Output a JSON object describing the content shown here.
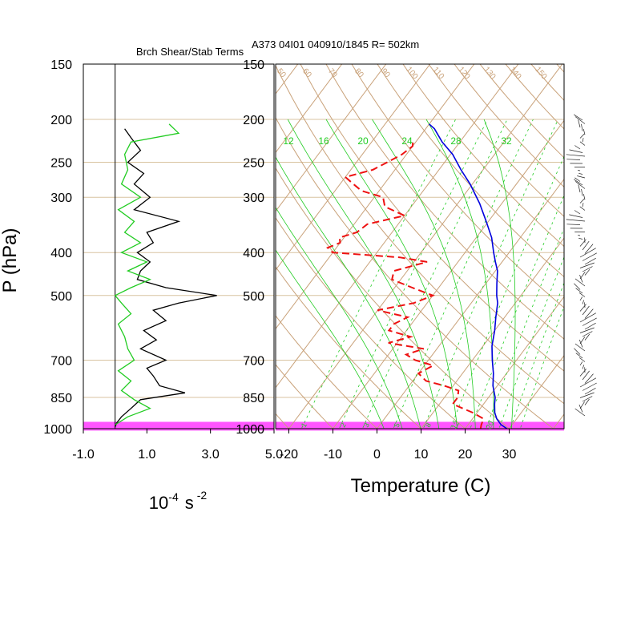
{
  "colors": {
    "frame": "#000000",
    "isobar": "#d8c3a0",
    "diag": "#c9a27a",
    "mixing": "#22cc22",
    "highlight": "#ff55ff",
    "dewpoint": "#ee1111",
    "temperature": "#0000dd",
    "shear": "#000000",
    "stability": "#22cc22"
  },
  "chart_data": [
    {
      "type": "line",
      "panel": "shear-stability",
      "title": "Brch Shear/Stab Terms",
      "xlabel_base": "10",
      "xlabel_exp": "-4",
      "xlabel_unit": "s",
      "xlabel_unit_exp": "-2",
      "ylabel": "P (hPa)",
      "x_ticks": [
        "-1.0",
        "1.0",
        "3.0",
        "5.0"
      ],
      "xlim": [
        -1.0,
        5.0
      ],
      "y_ticks": [
        "150",
        "200",
        "250",
        "300",
        "400",
        "500",
        "700",
        "850",
        "1000"
      ],
      "ylim": [
        1000,
        150
      ],
      "highlight_band_hpa": [
        965,
        1010
      ],
      "series": [
        {
          "key": "shear",
          "pressure": [
            210,
            220,
            235,
            250,
            265,
            280,
            300,
            320,
            340,
            360,
            380,
            400,
            420,
            440,
            460,
            480,
            500,
            520,
            540,
            570,
            600,
            630,
            660,
            700,
            730,
            760,
            800,
            830,
            860,
            900,
            940,
            970,
            990
          ],
          "values": [
            0.3,
            0.5,
            0.8,
            0.4,
            0.9,
            0.6,
            1.1,
            0.6,
            2.0,
            1.0,
            1.2,
            0.7,
            1.1,
            0.8,
            0.7,
            1.6,
            3.2,
            2.0,
            1.2,
            1.6,
            0.9,
            1.3,
            0.8,
            1.6,
            1.0,
            1.2,
            1.4,
            2.2,
            0.8,
            0.5,
            0.2,
            0.05,
            0.0
          ]
        },
        {
          "key": "stability",
          "pressure": [
            205,
            215,
            225,
            240,
            260,
            280,
            300,
            320,
            340,
            360,
            380,
            400,
            420,
            440,
            460,
            480,
            500,
            520,
            550,
            580,
            620,
            660,
            700,
            740,
            780,
            820,
            860,
            900,
            940,
            980
          ],
          "values": [
            1.7,
            2.0,
            0.5,
            0.3,
            0.4,
            0.2,
            0.8,
            0.1,
            0.6,
            0.3,
            0.8,
            0.2,
            1.0,
            0.4,
            1.1,
            0.5,
            0.0,
            0.2,
            0.5,
            0.1,
            0.3,
            0.4,
            0.6,
            0.1,
            0.5,
            0.2,
            0.6,
            1.1,
            0.4,
            0.0
          ]
        }
      ]
    },
    {
      "type": "line",
      "panel": "skew-t",
      "title": "A373 04I01 040910/1845 R= 502km",
      "xlabel": "Temperature (C)",
      "x_ticks": [
        "-20",
        "-10",
        "0",
        "10",
        "20",
        "30"
      ],
      "xlim": [
        -23,
        42
      ],
      "y_ticks": [
        "150",
        "200",
        "250",
        "300",
        "400",
        "500",
        "700",
        "850",
        "1000"
      ],
      "ylim": [
        1000,
        150
      ],
      "mixing_ratio_labels_top": [
        "12",
        "16",
        "20",
        "24",
        "28",
        "32"
      ],
      "mixing_ratio_labels_bottom": [
        "1",
        "2",
        "3",
        "5",
        "8",
        "12",
        "20"
      ],
      "theta_labels": [
        "50",
        "60",
        "70",
        "80",
        "90",
        "100",
        "110",
        "120",
        "130",
        "140",
        "150"
      ],
      "highlight_band_hpa": [
        965,
        1010
      ],
      "series": [
        {
          "key": "temperature",
          "pressure": [
            1000,
            980,
            950,
            920,
            880,
            850,
            800,
            750,
            700,
            650,
            600,
            560,
            520,
            500,
            470,
            440,
            420,
            400,
            370,
            340,
            310,
            280,
            260,
            240,
            225,
            210,
            205
          ],
          "values": [
            29.5,
            27.5,
            25.5,
            24.0,
            22.5,
            21.5,
            19.0,
            17.0,
            14.5,
            12.0,
            10.0,
            8.0,
            6.0,
            4.5,
            2.5,
            0.5,
            -1.5,
            -3.5,
            -6.5,
            -10.5,
            -15.0,
            -20.5,
            -25.0,
            -29.5,
            -34.0,
            -38.0,
            -40.0
          ]
        },
        {
          "key": "dewpoint",
          "pressure": [
            1000,
            980,
            950,
            920,
            880,
            850,
            820,
            800,
            780,
            750,
            720,
            700,
            680,
            660,
            640,
            620,
            600,
            580,
            560,
            540,
            520,
            500,
            480,
            460,
            440,
            420,
            410,
            400,
            390,
            380,
            370,
            360,
            345,
            330,
            315,
            300,
            290,
            280,
            270,
            260,
            250,
            240,
            230,
            222
          ],
          "values": [
            23.5,
            23.0,
            22.5,
            19.0,
            13.0,
            13.0,
            12.0,
            8.0,
            3.0,
            0.0,
            2.0,
            -3.0,
            -6.0,
            -3.0,
            -12.0,
            -8.0,
            -14.0,
            -14.0,
            -12.0,
            -20.0,
            -13.0,
            -10.0,
            -16.0,
            -22.0,
            -23.0,
            -17.0,
            -24.0,
            -40.0,
            -42.0,
            -40.0,
            -41.0,
            -38.0,
            -37.0,
            -30.0,
            -36.0,
            -38.0,
            -44.0,
            -47.0,
            -50.0,
            -45.0,
            -43.0,
            -41.0,
            -40.0,
            -41.0
          ]
        }
      ]
    }
  ]
}
